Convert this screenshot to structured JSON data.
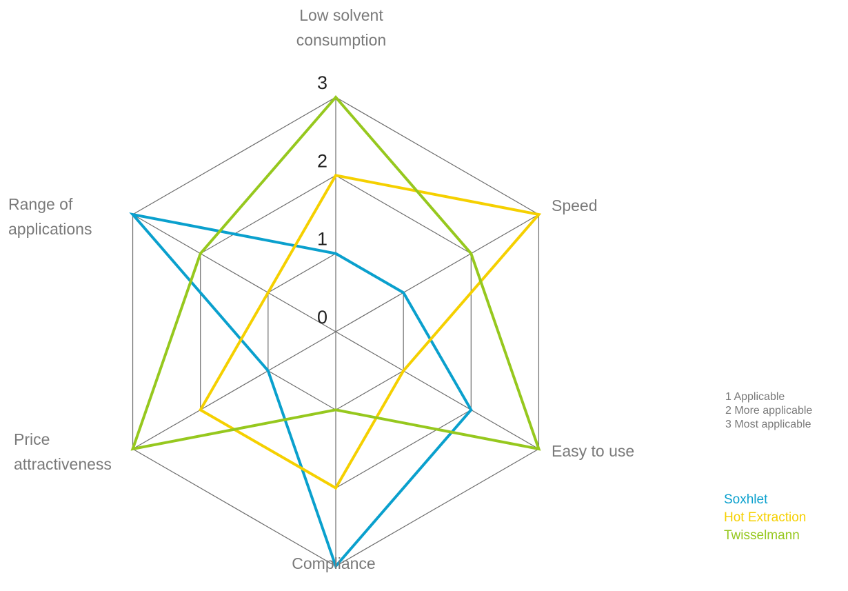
{
  "chart_data": {
    "type": "radar",
    "axes": [
      "Low solvent consumption",
      "Speed",
      "Easy to use",
      "Compliance",
      "Price attractiveness",
      "Range of applications"
    ],
    "axis_label_lines": [
      [
        "Low solvent",
        "consumption"
      ],
      [
        "Speed"
      ],
      [
        "Easy to use"
      ],
      [
        "Compliance"
      ],
      [
        "Price",
        "attractiveness"
      ],
      [
        "Range of",
        "applications"
      ]
    ],
    "range": [
      0,
      3
    ],
    "ticks": [
      "0",
      "1",
      "2",
      "3"
    ],
    "series": [
      {
        "name": "Soxhlet",
        "color": "#0aa0cd",
        "values": [
          1,
          1,
          2,
          3,
          1,
          3
        ]
      },
      {
        "name": "Hot Extraction",
        "color": "#f5d000",
        "values": [
          2,
          3,
          1,
          2,
          2,
          1
        ]
      },
      {
        "name": "Twisselmann",
        "color": "#96c81e",
        "values": [
          3,
          2,
          3,
          1,
          3,
          2
        ]
      }
    ],
    "scale_notes": [
      "1  Applicable",
      "2  More applicable",
      "3  Most applicable"
    ],
    "grid_color": "#6e6e6e"
  }
}
